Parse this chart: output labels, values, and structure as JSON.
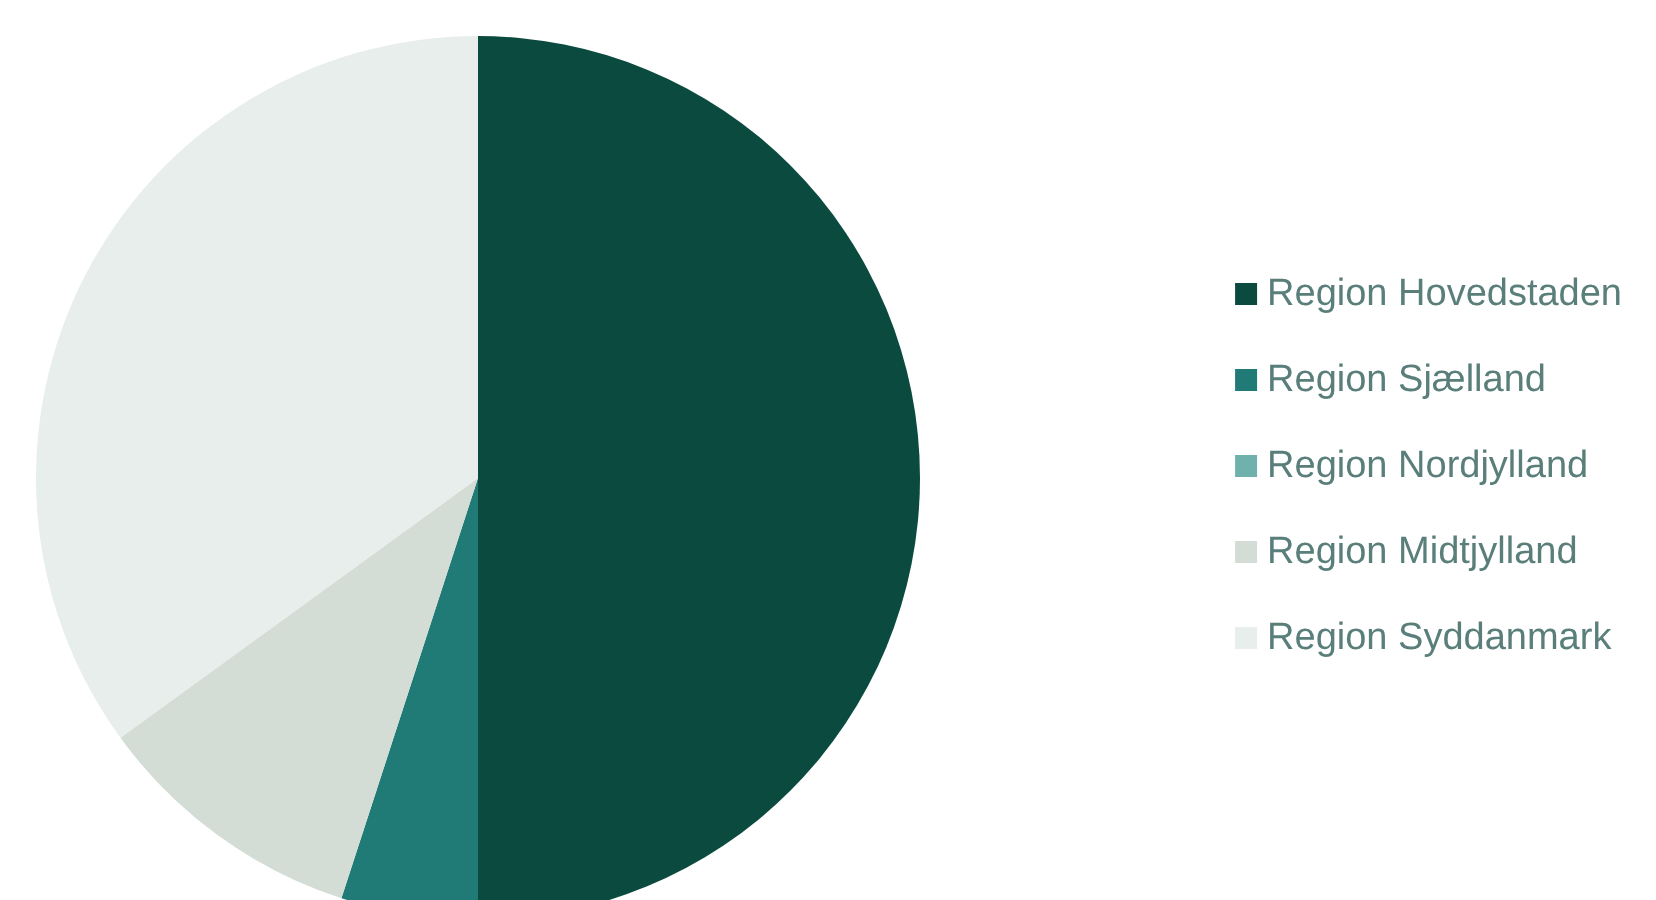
{
  "chart_data": {
    "type": "pie",
    "categories": [
      "Region Hovedstaden",
      "Region Sjælland",
      "Region Nordjylland",
      "Region Midtjylland",
      "Region Syddanmark"
    ],
    "values": [
      50,
      5,
      0,
      10,
      35
    ],
    "colors": [
      "#0b4a3e",
      "#207a76",
      "#6fb1ad",
      "#d3ddd6",
      "#e8eeeb"
    ],
    "legend": "right"
  }
}
